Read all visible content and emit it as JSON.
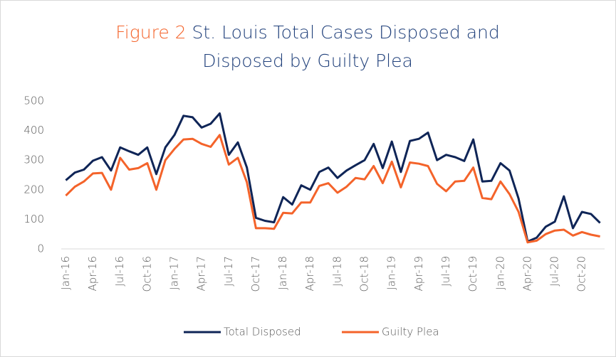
{
  "chart_data": {
    "type": "line",
    "title_prefix": "Figure 2",
    "title": "St. Louis Total Cases Disposed and Disposed by Guilty Plea",
    "categories": [
      "Jan-16",
      null,
      null,
      "Apr-16",
      null,
      null,
      "Jul-16",
      null,
      null,
      "Oct-16",
      null,
      null,
      "Jan-17",
      null,
      null,
      "Apr-17",
      null,
      null,
      "Jul-17",
      null,
      null,
      "Oct-17",
      null,
      null,
      "Jan-18",
      null,
      null,
      "Apr-18",
      null,
      null,
      "Jul-18",
      null,
      null,
      "Oct-18",
      null,
      null,
      "Jan-19",
      null,
      null,
      "Apr-19",
      null,
      null,
      "Jul-19",
      null,
      null,
      "Oct-19",
      null,
      null,
      "Jan-20",
      null,
      null,
      "Apr-20",
      null,
      null,
      "Jul-20",
      null,
      null,
      "Oct-20",
      null,
      null
    ],
    "series": [
      {
        "name": "Total Disposed",
        "color": "#0f2557",
        "values": [
          232,
          258,
          268,
          298,
          310,
          265,
          343,
          330,
          318,
          343,
          253,
          343,
          385,
          450,
          445,
          410,
          423,
          458,
          318,
          360,
          275,
          105,
          95,
          90,
          175,
          150,
          215,
          200,
          260,
          275,
          240,
          265,
          283,
          300,
          355,
          273,
          363,
          260,
          365,
          372,
          393,
          300,
          318,
          310,
          297,
          370,
          228,
          230,
          290,
          265,
          170,
          25,
          38,
          75,
          92,
          178,
          70,
          125,
          118,
          88
        ]
      },
      {
        "name": "Guilty Plea",
        "color": "#f4632a",
        "values": [
          180,
          210,
          228,
          255,
          257,
          200,
          308,
          268,
          273,
          290,
          200,
          300,
          338,
          370,
          372,
          355,
          345,
          385,
          285,
          308,
          225,
          70,
          70,
          68,
          122,
          120,
          157,
          157,
          213,
          222,
          190,
          210,
          240,
          235,
          280,
          222,
          295,
          208,
          292,
          288,
          280,
          220,
          195,
          228,
          230,
          275,
          172,
          168,
          228,
          185,
          125,
          22,
          28,
          50,
          62,
          65,
          45,
          57,
          48,
          42
        ]
      }
    ],
    "ylim": [
      0,
      500
    ],
    "yticks": [
      0,
      100,
      200,
      300,
      400,
      500
    ],
    "grid": false,
    "legend": "bottom"
  }
}
